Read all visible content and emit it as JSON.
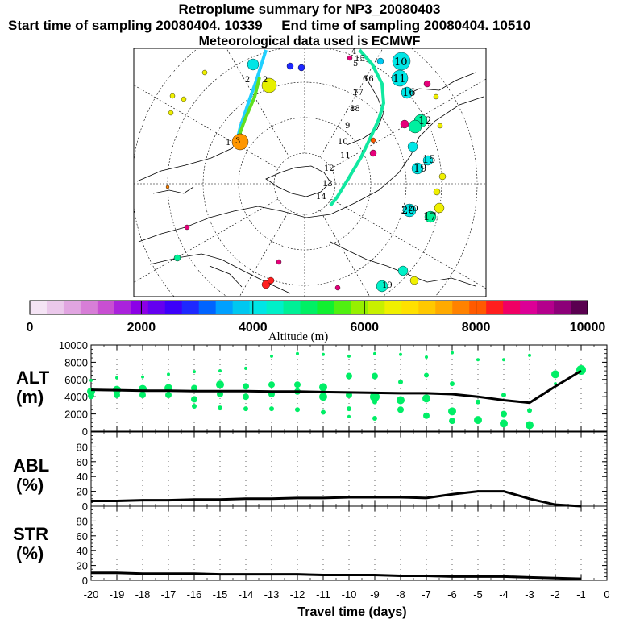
{
  "header": {
    "title": "Retroplume summary for NP3_20080403",
    "sampling": "Start time of sampling 20080404. 10339     End time of sampling 20080404. 10510",
    "met": "Meteorological data used is ECMWF"
  },
  "map": {
    "trajectory_day_labels": [
      "1",
      "2",
      "2",
      "3",
      "4",
      "5",
      "6",
      "7",
      "8",
      "9",
      "10",
      "11",
      "12",
      "13",
      "14",
      "15",
      "16",
      "17",
      "18",
      "19",
      "20"
    ],
    "cluster_labels": [
      "10",
      "11",
      "12",
      "15",
      "16",
      "19",
      "20",
      "17"
    ]
  },
  "colorbar": {
    "labels": [
      "0",
      "2000",
      "4000",
      "6000",
      "8000",
      "10000"
    ],
    "title": "Altitude (m)",
    "min": 0,
    "max": 10000,
    "colors": [
      "#f5e4f5",
      "#ebc8eb",
      "#e1a5e1",
      "#d77ed7",
      "#c84fd2",
      "#aa22dc",
      "#8c00e6",
      "#6400f0",
      "#3c00fa",
      "#1e28ff",
      "#0064ff",
      "#00a0ff",
      "#00c8f0",
      "#00e6e6",
      "#00f0c8",
      "#00f096",
      "#00f064",
      "#10f030",
      "#50f010",
      "#96f000",
      "#c8f000",
      "#f0f000",
      "#ffe100",
      "#ffc800",
      "#ffaa00",
      "#ff8200",
      "#ff5a00",
      "#ff1e1e",
      "#f00064",
      "#dc0096",
      "#b4008c",
      "#8c0078",
      "#5a0050"
    ]
  },
  "panels": {
    "alt_label": [
      "ALT",
      "(m)"
    ],
    "abl_label": [
      "ABL",
      "(%)"
    ],
    "str_label": [
      "STR",
      "(%)"
    ],
    "xlabel": "Travel time (days)"
  },
  "chart_data": [
    {
      "type": "line",
      "title": "ALT (m)",
      "x": [
        -20,
        -19,
        -18,
        -17,
        -16,
        -15,
        -14,
        -13,
        -12,
        -11,
        -10,
        -9,
        -8,
        -7,
        -6,
        -5,
        -4,
        -3,
        -2,
        -1
      ],
      "y": [
        4800,
        4750,
        4700,
        4700,
        4650,
        4650,
        4650,
        4600,
        4600,
        4550,
        4500,
        4450,
        4400,
        4400,
        4300,
        4000,
        3600,
        3300,
        5200,
        7000
      ],
      "ylim": [
        0,
        10000
      ],
      "yticks": [
        "0",
        "2000",
        "4000",
        "6000",
        "8000",
        "10000"
      ],
      "xlabel": "Travel time (days)",
      "ylabel": "ALT (m)",
      "scatter_series": {
        "color": "#00ee66",
        "points": [
          [
            -20,
            5900
          ],
          [
            -20,
            4600
          ],
          [
            -20,
            4100
          ],
          [
            -19,
            6200
          ],
          [
            -19,
            4800
          ],
          [
            -19,
            4200
          ],
          [
            -18,
            6300
          ],
          [
            -18,
            4900
          ],
          [
            -18,
            4200
          ],
          [
            -17,
            6600
          ],
          [
            -17,
            5000
          ],
          [
            -17,
            4200
          ],
          [
            -16,
            6900
          ],
          [
            -16,
            5000
          ],
          [
            -16,
            3700
          ],
          [
            -16,
            2900
          ],
          [
            -15,
            7000
          ],
          [
            -15,
            5400
          ],
          [
            -15,
            4300
          ],
          [
            -15,
            2700
          ],
          [
            -14,
            7300
          ],
          [
            -14,
            5200
          ],
          [
            -14,
            4000
          ],
          [
            -14,
            2600
          ],
          [
            -13,
            8700
          ],
          [
            -13,
            5400
          ],
          [
            -13,
            4300
          ],
          [
            -13,
            2600
          ],
          [
            -12,
            9000
          ],
          [
            -12,
            5400
          ],
          [
            -12,
            4600
          ],
          [
            -12,
            2500
          ],
          [
            -11,
            8900
          ],
          [
            -11,
            5100
          ],
          [
            -11,
            4000
          ],
          [
            -11,
            2200
          ],
          [
            -10,
            8700
          ],
          [
            -10,
            6400
          ],
          [
            -10,
            4200
          ],
          [
            -10,
            2600
          ],
          [
            -10,
            1700
          ],
          [
            -9,
            9000
          ],
          [
            -9,
            6400
          ],
          [
            -9,
            4000
          ],
          [
            -9,
            3400
          ],
          [
            -9,
            1500
          ],
          [
            -8,
            8900
          ],
          [
            -8,
            5700
          ],
          [
            -8,
            3600
          ],
          [
            -8,
            2500
          ],
          [
            -7,
            8600
          ],
          [
            -7,
            6500
          ],
          [
            -7,
            3800
          ],
          [
            -7,
            1800
          ],
          [
            -6,
            9100
          ],
          [
            -6,
            5500
          ],
          [
            -6,
            2300
          ],
          [
            -6,
            1200
          ],
          [
            -5,
            8300
          ],
          [
            -5,
            3400
          ],
          [
            -5,
            1300
          ],
          [
            -4,
            8300
          ],
          [
            -4,
            4200
          ],
          [
            -4,
            2000
          ],
          [
            -4,
            900
          ],
          [
            -3,
            8800
          ],
          [
            -3,
            2400
          ],
          [
            -3,
            700
          ],
          [
            -2,
            6600
          ],
          [
            -2,
            5500
          ],
          [
            -1,
            7100
          ]
        ],
        "sizes": [
          2,
          5,
          4,
          2,
          5,
          4,
          2,
          5,
          4,
          2,
          5,
          4,
          2,
          4,
          4,
          3,
          2,
          5,
          4,
          3,
          2,
          4,
          4,
          3,
          2,
          4,
          4,
          3,
          2,
          4,
          4,
          3,
          2,
          5,
          5,
          3,
          2,
          4,
          4,
          3,
          2,
          2,
          4,
          6,
          3,
          3,
          2,
          3,
          5,
          4,
          2,
          3,
          5,
          4,
          2,
          3,
          5,
          4,
          2,
          3,
          5,
          2,
          3,
          4,
          5,
          2,
          3,
          5,
          5,
          2,
          6
        ]
      }
    },
    {
      "type": "line",
      "title": "ABL (%)",
      "x": [
        -20,
        -19,
        -18,
        -17,
        -16,
        -15,
        -14,
        -13,
        -12,
        -11,
        -10,
        -9,
        -8,
        -7,
        -6,
        -5,
        -4,
        -3,
        -2,
        -1
      ],
      "y": [
        7,
        7,
        8,
        8,
        9,
        9,
        10,
        10,
        11,
        11,
        12,
        12,
        12,
        11,
        16,
        20,
        20,
        10,
        2,
        0
      ],
      "ylim": [
        0,
        100
      ],
      "yticks": [
        "0",
        "20",
        "40",
        "60",
        "80"
      ],
      "ylabel": "ABL (%)"
    },
    {
      "type": "line",
      "title": "STR (%)",
      "x": [
        -20,
        -19,
        -18,
        -17,
        -16,
        -15,
        -14,
        -13,
        -12,
        -11,
        -10,
        -9,
        -8,
        -7,
        -6,
        -5,
        -4,
        -3,
        -2,
        -1
      ],
      "y": [
        10,
        10,
        9,
        9,
        9,
        8,
        8,
        8,
        8,
        7,
        7,
        7,
        6,
        6,
        5,
        5,
        5,
        4,
        3,
        2
      ],
      "ylim": [
        0,
        100
      ],
      "yticks": [
        "0",
        "20",
        "40",
        "60",
        "80"
      ],
      "ylabel": "STR (%)",
      "xticks": [
        "-20",
        "-19",
        "-18",
        "-17",
        "-16",
        "-15",
        "-14",
        "-13",
        "-12",
        "-11",
        "-10",
        "-9",
        "-8",
        "-7",
        "-6",
        "-5",
        "-4",
        "-3",
        "-2",
        "-1",
        "0"
      ]
    }
  ]
}
